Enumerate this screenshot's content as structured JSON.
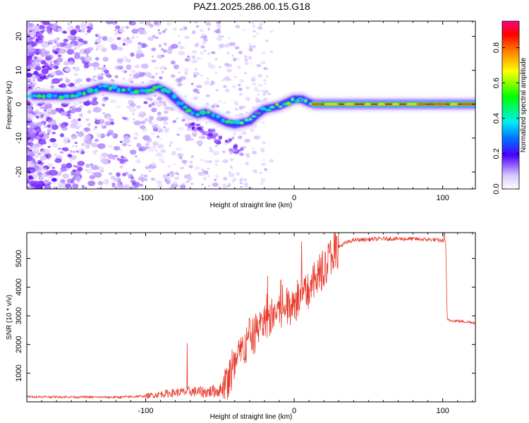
{
  "chart_data": [
    {
      "type": "heatmap",
      "title": "PAZ1.2025.286.00.15.G18",
      "xlabel": "Height of straight line (km)",
      "ylabel": "Frequency (Hz)",
      "xlim": [
        -180,
        122
      ],
      "ylim": [
        -25,
        24.5
      ],
      "xticks": [
        -100,
        0,
        100
      ],
      "yticks": [
        -20,
        -10,
        0,
        10,
        20
      ],
      "ridge": [
        {
          "x": -175,
          "y": 2.5
        },
        {
          "x": -165,
          "y": 2.5
        },
        {
          "x": -150,
          "y": 2.5
        },
        {
          "x": -140,
          "y": 3.5
        },
        {
          "x": -130,
          "y": 5
        },
        {
          "x": -120,
          "y": 4.5
        },
        {
          "x": -110,
          "y": 4
        },
        {
          "x": -100,
          "y": 4
        },
        {
          "x": -92,
          "y": 5
        },
        {
          "x": -85,
          "y": 3.5
        },
        {
          "x": -80,
          "y": 1.5
        },
        {
          "x": -75,
          "y": -0.5
        },
        {
          "x": -70,
          "y": -2
        },
        {
          "x": -65,
          "y": -3
        },
        {
          "x": -60,
          "y": -2.5
        },
        {
          "x": -55,
          "y": -3.5
        },
        {
          "x": -50,
          "y": -4.5
        },
        {
          "x": -45,
          "y": -5.5
        },
        {
          "x": -40,
          "y": -6
        },
        {
          "x": -35,
          "y": -5.5
        },
        {
          "x": -30,
          "y": -5
        },
        {
          "x": -25,
          "y": -3
        },
        {
          "x": -20,
          "y": -1.5
        },
        {
          "x": -15,
          "y": -1
        },
        {
          "x": -10,
          "y": -0.5
        },
        {
          "x": -5,
          "y": 0.5
        },
        {
          "x": 0,
          "y": 1.5
        },
        {
          "x": 5,
          "y": 1.5
        },
        {
          "x": 10,
          "y": 0.5
        },
        {
          "x": 15,
          "y": 0
        },
        {
          "x": 30,
          "y": 0
        },
        {
          "x": 60,
          "y": 0
        },
        {
          "x": 90,
          "y": 0
        },
        {
          "x": 122,
          "y": 0
        }
      ],
      "colorbar": {
        "label": "Normalized spectral amplitude",
        "range": [
          0,
          0.95
        ],
        "ticks": [
          "0.0",
          "0.2",
          "0.4",
          "0.6",
          "0.8"
        ]
      }
    },
    {
      "type": "line",
      "series_name": "SNR",
      "xlabel": "Height of straight line (km)",
      "ylabel": "SNR (10 * v/v)",
      "xlim": [
        -180,
        122
      ],
      "ylim": [
        0,
        5900
      ],
      "xticks": [
        -100,
        0,
        100
      ],
      "yticks": [
        1000,
        2000,
        3000,
        4000,
        5000
      ],
      "line_color": "#e83a2c",
      "trend": [
        {
          "x": -180,
          "y": 180
        },
        {
          "x": -150,
          "y": 170
        },
        {
          "x": -120,
          "y": 160
        },
        {
          "x": -100,
          "y": 200
        },
        {
          "x": -90,
          "y": 270
        },
        {
          "x": -80,
          "y": 320
        },
        {
          "x": -70,
          "y": 360
        },
        {
          "x": -60,
          "y": 340
        },
        {
          "x": -50,
          "y": 400
        },
        {
          "x": -45,
          "y": 700
        },
        {
          "x": -40,
          "y": 1200
        },
        {
          "x": -35,
          "y": 1800
        },
        {
          "x": -30,
          "y": 2100
        },
        {
          "x": -25,
          "y": 2500
        },
        {
          "x": -20,
          "y": 2800
        },
        {
          "x": -15,
          "y": 3000
        },
        {
          "x": -10,
          "y": 3200
        },
        {
          "x": -5,
          "y": 3300
        },
        {
          "x": 0,
          "y": 3450
        },
        {
          "x": 5,
          "y": 3650
        },
        {
          "x": 10,
          "y": 3900
        },
        {
          "x": 15,
          "y": 4300
        },
        {
          "x": 20,
          "y": 4700
        },
        {
          "x": 25,
          "y": 5100
        },
        {
          "x": 30,
          "y": 5400
        },
        {
          "x": 35,
          "y": 5550
        },
        {
          "x": 40,
          "y": 5640
        },
        {
          "x": 60,
          "y": 5690
        },
        {
          "x": 80,
          "y": 5680
        },
        {
          "x": 95,
          "y": 5650
        },
        {
          "x": 102,
          "y": 5600
        },
        {
          "x": 103,
          "y": 2850
        },
        {
          "x": 110,
          "y": 2820
        },
        {
          "x": 122,
          "y": 2760
        }
      ],
      "spikes": [
        {
          "x": -72,
          "y": 2050
        },
        {
          "x": -30,
          "y": 2900
        },
        {
          "x": -18,
          "y": 4400
        },
        {
          "x": -9,
          "y": 4250
        },
        {
          "x": 5,
          "y": 5600
        },
        {
          "x": 101,
          "y": 5950
        }
      ]
    }
  ]
}
